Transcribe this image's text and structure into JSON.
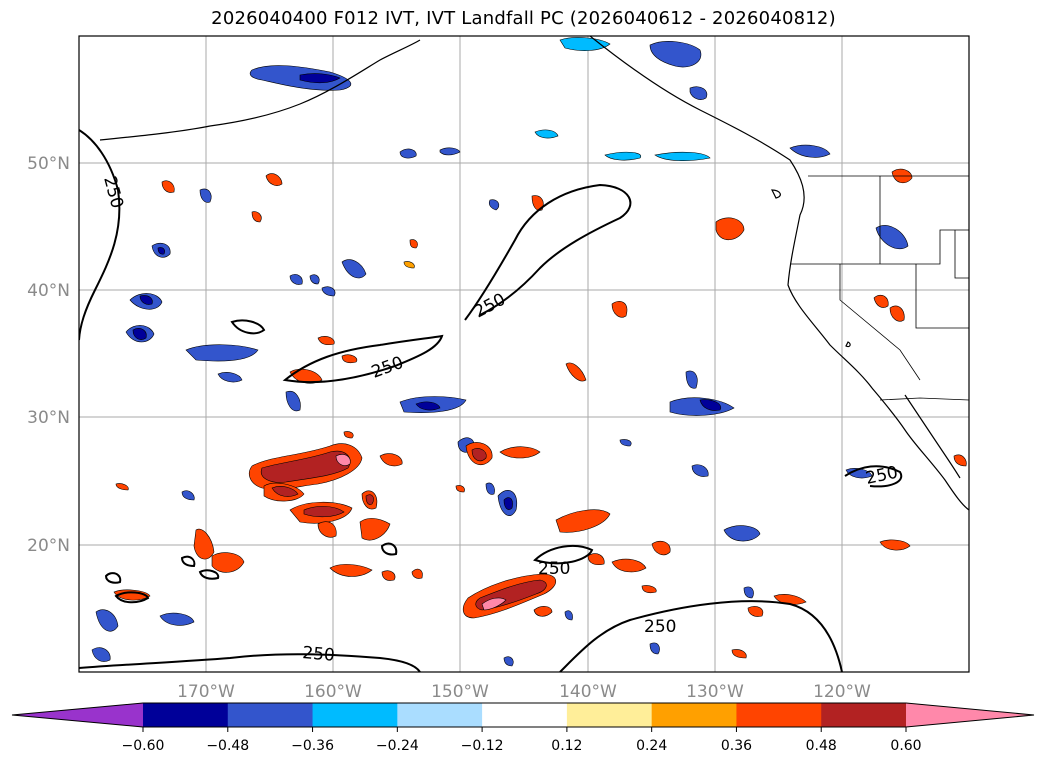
{
  "title": "2026040400 F012 IVT, IVT Landfall PC (2026040612 - 2026040812)",
  "map": {
    "lon_labels": [
      "170°W",
      "160°W",
      "150°W",
      "140°W",
      "130°W",
      "120°W"
    ],
    "lat_labels": [
      "50°N",
      "40°N",
      "30°N",
      "20°N"
    ],
    "contour_label": "250",
    "contour_value": 250
  },
  "colorbar": {
    "ticks": [
      "−0.60",
      "−0.48",
      "−0.36",
      "−0.24",
      "−0.12",
      "0.12",
      "0.24",
      "0.36",
      "0.48",
      "0.60"
    ],
    "colors": [
      "#9933cc",
      "#000099",
      "#3355cc",
      "#00bbff",
      "#aaddff",
      "#ffffff",
      "#ffee99",
      "#ffa000",
      "#ff4400",
      "#b22222",
      "#ff88aa"
    ]
  }
}
